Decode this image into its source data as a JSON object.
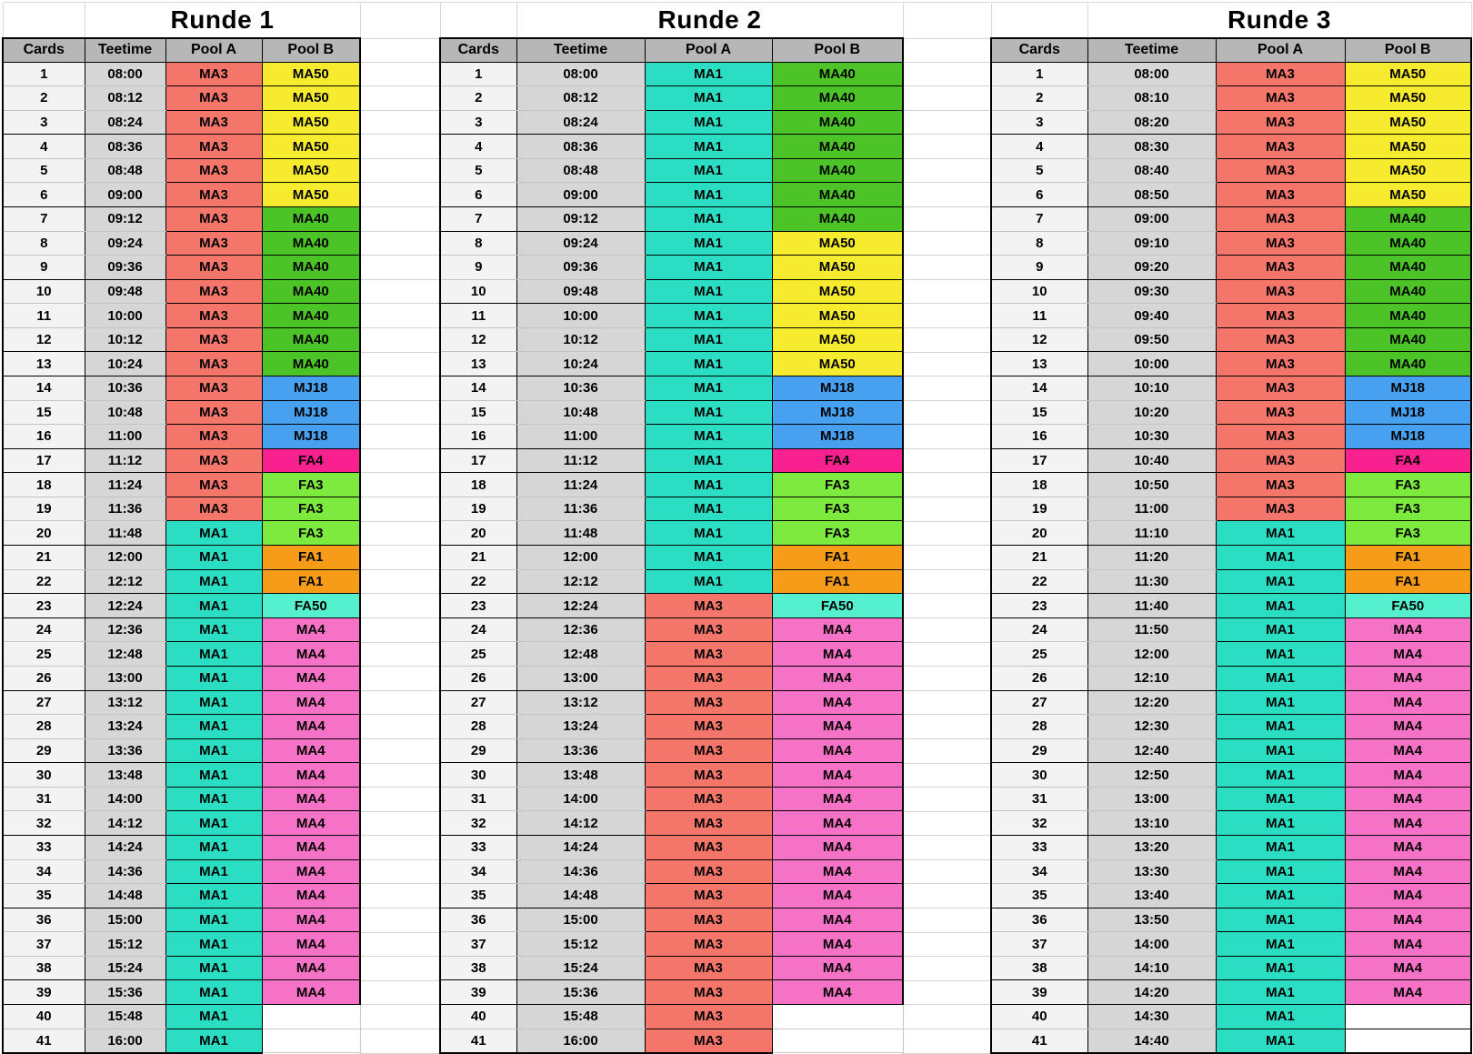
{
  "columns": [
    "Cards",
    "Teetime",
    "Pool A",
    "Pool B"
  ],
  "palette": {
    "MA1": "#2bdec3",
    "MA3": "#f4766b",
    "MA4": "#f672c6",
    "MA40": "#4cc427",
    "MA50": "#f7eb30",
    "MJ18": "#47a1f0",
    "FA1": "#f79c18",
    "FA3": "#7ceb3d",
    "FA4": "#f8218f",
    "FA50": "#55f0cd",
    "header_bg": "#b7b7b7",
    "teetime_bg": "#d6d6d6",
    "cards_bg": "#f3f3f3",
    "empty_bg": "#ffffff"
  },
  "tables": [
    {
      "title": "Runde 1",
      "rows": [
        [
          1,
          "08:00",
          "MA3",
          "MA50"
        ],
        [
          2,
          "08:12",
          "MA3",
          "MA50"
        ],
        [
          3,
          "08:24",
          "MA3",
          "MA50"
        ],
        [
          4,
          "08:36",
          "MA3",
          "MA50"
        ],
        [
          5,
          "08:48",
          "MA3",
          "MA50"
        ],
        [
          6,
          "09:00",
          "MA3",
          "MA50"
        ],
        [
          7,
          "09:12",
          "MA3",
          "MA40"
        ],
        [
          8,
          "09:24",
          "MA3",
          "MA40"
        ],
        [
          9,
          "09:36",
          "MA3",
          "MA40"
        ],
        [
          10,
          "09:48",
          "MA3",
          "MA40"
        ],
        [
          11,
          "10:00",
          "MA3",
          "MA40"
        ],
        [
          12,
          "10:12",
          "MA3",
          "MA40"
        ],
        [
          13,
          "10:24",
          "MA3",
          "MA40"
        ],
        [
          14,
          "10:36",
          "MA3",
          "MJ18"
        ],
        [
          15,
          "10:48",
          "MA3",
          "MJ18"
        ],
        [
          16,
          "11:00",
          "MA3",
          "MJ18"
        ],
        [
          17,
          "11:12",
          "MA3",
          "FA4"
        ],
        [
          18,
          "11:24",
          "MA3",
          "FA3"
        ],
        [
          19,
          "11:36",
          "MA3",
          "FA3"
        ],
        [
          20,
          "11:48",
          "MA1",
          "FA3"
        ],
        [
          21,
          "12:00",
          "MA1",
          "FA1"
        ],
        [
          22,
          "12:12",
          "MA1",
          "FA1"
        ],
        [
          23,
          "12:24",
          "MA1",
          "FA50"
        ],
        [
          24,
          "12:36",
          "MA1",
          "MA4"
        ],
        [
          25,
          "12:48",
          "MA1",
          "MA4"
        ],
        [
          26,
          "13:00",
          "MA1",
          "MA4"
        ],
        [
          27,
          "13:12",
          "MA1",
          "MA4"
        ],
        [
          28,
          "13:24",
          "MA1",
          "MA4"
        ],
        [
          29,
          "13:36",
          "MA1",
          "MA4"
        ],
        [
          30,
          "13:48",
          "MA1",
          "MA4"
        ],
        [
          31,
          "14:00",
          "MA1",
          "MA4"
        ],
        [
          32,
          "14:12",
          "MA1",
          "MA4"
        ],
        [
          33,
          "14:24",
          "MA1",
          "MA4"
        ],
        [
          34,
          "14:36",
          "MA1",
          "MA4"
        ],
        [
          35,
          "14:48",
          "MA1",
          "MA4"
        ],
        [
          36,
          "15:00",
          "MA1",
          "MA4"
        ],
        [
          37,
          "15:12",
          "MA1",
          "MA4"
        ],
        [
          38,
          "15:24",
          "MA1",
          "MA4"
        ],
        [
          39,
          "15:36",
          "MA1",
          "MA4"
        ],
        [
          40,
          "15:48",
          "MA1",
          ""
        ],
        [
          41,
          "16:00",
          "MA1",
          ""
        ]
      ]
    },
    {
      "title": "Runde 2",
      "rows": [
        [
          1,
          "08:00",
          "MA1",
          "MA40"
        ],
        [
          2,
          "08:12",
          "MA1",
          "MA40"
        ],
        [
          3,
          "08:24",
          "MA1",
          "MA40"
        ],
        [
          4,
          "08:36",
          "MA1",
          "MA40"
        ],
        [
          5,
          "08:48",
          "MA1",
          "MA40"
        ],
        [
          6,
          "09:00",
          "MA1",
          "MA40"
        ],
        [
          7,
          "09:12",
          "MA1",
          "MA40"
        ],
        [
          8,
          "09:24",
          "MA1",
          "MA50"
        ],
        [
          9,
          "09:36",
          "MA1",
          "MA50"
        ],
        [
          10,
          "09:48",
          "MA1",
          "MA50"
        ],
        [
          11,
          "10:00",
          "MA1",
          "MA50"
        ],
        [
          12,
          "10:12",
          "MA1",
          "MA50"
        ],
        [
          13,
          "10:24",
          "MA1",
          "MA50"
        ],
        [
          14,
          "10:36",
          "MA1",
          "MJ18"
        ],
        [
          15,
          "10:48",
          "MA1",
          "MJ18"
        ],
        [
          16,
          "11:00",
          "MA1",
          "MJ18"
        ],
        [
          17,
          "11:12",
          "MA1",
          "FA4"
        ],
        [
          18,
          "11:24",
          "MA1",
          "FA3"
        ],
        [
          19,
          "11:36",
          "MA1",
          "FA3"
        ],
        [
          20,
          "11:48",
          "MA1",
          "FA3"
        ],
        [
          21,
          "12:00",
          "MA1",
          "FA1"
        ],
        [
          22,
          "12:12",
          "MA1",
          "FA1"
        ],
        [
          23,
          "12:24",
          "MA3",
          "FA50"
        ],
        [
          24,
          "12:36",
          "MA3",
          "MA4"
        ],
        [
          25,
          "12:48",
          "MA3",
          "MA4"
        ],
        [
          26,
          "13:00",
          "MA3",
          "MA4"
        ],
        [
          27,
          "13:12",
          "MA3",
          "MA4"
        ],
        [
          28,
          "13:24",
          "MA3",
          "MA4"
        ],
        [
          29,
          "13:36",
          "MA3",
          "MA4"
        ],
        [
          30,
          "13:48",
          "MA3",
          "MA4"
        ],
        [
          31,
          "14:00",
          "MA3",
          "MA4"
        ],
        [
          32,
          "14:12",
          "MA3",
          "MA4"
        ],
        [
          33,
          "14:24",
          "MA3",
          "MA4"
        ],
        [
          34,
          "14:36",
          "MA3",
          "MA4"
        ],
        [
          35,
          "14:48",
          "MA3",
          "MA4"
        ],
        [
          36,
          "15:00",
          "MA3",
          "MA4"
        ],
        [
          37,
          "15:12",
          "MA3",
          "MA4"
        ],
        [
          38,
          "15:24",
          "MA3",
          "MA4"
        ],
        [
          39,
          "15:36",
          "MA3",
          "MA4"
        ],
        [
          40,
          "15:48",
          "MA3",
          ""
        ],
        [
          41,
          "16:00",
          "MA3",
          ""
        ]
      ]
    },
    {
      "title": "Runde 3",
      "rows": [
        [
          1,
          "08:00",
          "MA3",
          "MA50"
        ],
        [
          2,
          "08:10",
          "MA3",
          "MA50"
        ],
        [
          3,
          "08:20",
          "MA3",
          "MA50"
        ],
        [
          4,
          "08:30",
          "MA3",
          "MA50"
        ],
        [
          5,
          "08:40",
          "MA3",
          "MA50"
        ],
        [
          6,
          "08:50",
          "MA3",
          "MA50"
        ],
        [
          7,
          "09:00",
          "MA3",
          "MA40"
        ],
        [
          8,
          "09:10",
          "MA3",
          "MA40"
        ],
        [
          9,
          "09:20",
          "MA3",
          "MA40"
        ],
        [
          10,
          "09:30",
          "MA3",
          "MA40"
        ],
        [
          11,
          "09:40",
          "MA3",
          "MA40"
        ],
        [
          12,
          "09:50",
          "MA3",
          "MA40"
        ],
        [
          13,
          "10:00",
          "MA3",
          "MA40"
        ],
        [
          14,
          "10:10",
          "MA3",
          "MJ18"
        ],
        [
          15,
          "10:20",
          "MA3",
          "MJ18"
        ],
        [
          16,
          "10:30",
          "MA3",
          "MJ18"
        ],
        [
          17,
          "10:40",
          "MA3",
          "FA4"
        ],
        [
          18,
          "10:50",
          "MA3",
          "FA3"
        ],
        [
          19,
          "11:00",
          "MA3",
          "FA3"
        ],
        [
          20,
          "11:10",
          "MA1",
          "FA3"
        ],
        [
          21,
          "11:20",
          "MA1",
          "FA1"
        ],
        [
          22,
          "11:30",
          "MA1",
          "FA1"
        ],
        [
          23,
          "11:40",
          "MA1",
          "FA50"
        ],
        [
          24,
          "11:50",
          "MA1",
          "MA4"
        ],
        [
          25,
          "12:00",
          "MA1",
          "MA4"
        ],
        [
          26,
          "12:10",
          "MA1",
          "MA4"
        ],
        [
          27,
          "12:20",
          "MA1",
          "MA4"
        ],
        [
          28,
          "12:30",
          "MA1",
          "MA4"
        ],
        [
          29,
          "12:40",
          "MA1",
          "MA4"
        ],
        [
          30,
          "12:50",
          "MA1",
          "MA4"
        ],
        [
          31,
          "13:00",
          "MA1",
          "MA4"
        ],
        [
          32,
          "13:10",
          "MA1",
          "MA4"
        ],
        [
          33,
          "13:20",
          "MA1",
          "MA4"
        ],
        [
          34,
          "13:30",
          "MA1",
          "MA4"
        ],
        [
          35,
          "13:40",
          "MA1",
          "MA4"
        ],
        [
          36,
          "13:50",
          "MA1",
          "MA4"
        ],
        [
          37,
          "14:00",
          "MA1",
          "MA4"
        ],
        [
          38,
          "14:10",
          "MA1",
          "MA4"
        ],
        [
          39,
          "14:20",
          "MA1",
          "MA4"
        ],
        [
          40,
          "14:30",
          "MA1",
          ""
        ],
        [
          41,
          "14:40",
          "MA1",
          ""
        ]
      ]
    }
  ]
}
